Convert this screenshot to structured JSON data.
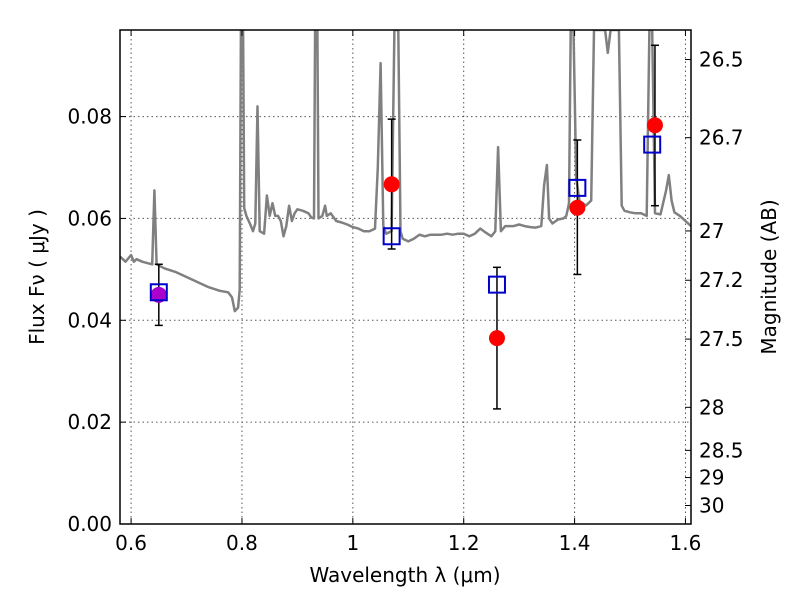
{
  "chart_data": {
    "type": "scatter",
    "xlabel": "Wavelength  λ (μm)",
    "ylabel": "Flux  Fν  ( μJy )",
    "ylabel_right": "Magnitude (AB)",
    "xlim": [
      0.58,
      1.61
    ],
    "ylim": [
      0.0,
      0.097
    ],
    "x_ticks": [
      0.6,
      0.8,
      1.0,
      1.2,
      1.4,
      1.6
    ],
    "x_tick_labels": [
      "0.6",
      "0.8",
      "1",
      "1.2",
      "1.4",
      "1.6"
    ],
    "y_ticks": [
      0.0,
      0.02,
      0.04,
      0.06,
      0.08
    ],
    "y_tick_labels": [
      "0.00",
      "0.02",
      "0.04",
      "0.06",
      "0.08"
    ],
    "right_ticks": [
      {
        "label": "26.5",
        "mag": 26.5
      },
      {
        "label": "26.7",
        "mag": 26.7
      },
      {
        "label": "27",
        "mag": 27.0
      },
      {
        "label": "27.2",
        "mag": 27.2
      },
      {
        "label": "27.5",
        "mag": 27.5
      },
      {
        "label": "28",
        "mag": 28.0
      },
      {
        "label": "28.5",
        "mag": 28.5
      },
      {
        "label": "29",
        "mag": 29.0
      },
      {
        "label": "30",
        "mag": 30.0
      }
    ],
    "grid": true,
    "colors": {
      "spectrum": "#808080",
      "observed": "#ff0000",
      "model": "#0000cc",
      "overlap": "#aa00cc",
      "errorbar": "#000000"
    },
    "series": [
      {
        "kind": "line",
        "points": [
          [
            0.58,
            0.0525
          ],
          [
            0.59,
            0.0515
          ],
          [
            0.6,
            0.0528
          ],
          [
            0.605,
            0.0515
          ],
          [
            0.61,
            0.052
          ],
          [
            0.62,
            0.0515
          ],
          [
            0.63,
            0.0512
          ],
          [
            0.638,
            0.051
          ],
          [
            0.642,
            0.0655
          ],
          [
            0.646,
            0.051
          ],
          [
            0.66,
            0.0502
          ],
          [
            0.68,
            0.0495
          ],
          [
            0.7,
            0.0485
          ],
          [
            0.72,
            0.0475
          ],
          [
            0.74,
            0.0465
          ],
          [
            0.76,
            0.0458
          ],
          [
            0.775,
            0.0455
          ],
          [
            0.782,
            0.0445
          ],
          [
            0.787,
            0.0418
          ],
          [
            0.793,
            0.0425
          ],
          [
            0.796,
            0.046
          ],
          [
            0.798,
            0.097
          ],
          [
            0.802,
            0.097
          ],
          [
            0.804,
            0.062
          ],
          [
            0.808,
            0.0605
          ],
          [
            0.815,
            0.0588
          ],
          [
            0.82,
            0.0575
          ],
          [
            0.824,
            0.059
          ],
          [
            0.828,
            0.082
          ],
          [
            0.832,
            0.0575
          ],
          [
            0.84,
            0.057
          ],
          [
            0.845,
            0.0645
          ],
          [
            0.85,
            0.0605
          ],
          [
            0.855,
            0.063
          ],
          [
            0.86,
            0.0605
          ],
          [
            0.865,
            0.0605
          ],
          [
            0.87,
            0.0595
          ],
          [
            0.875,
            0.0565
          ],
          [
            0.88,
            0.0585
          ],
          [
            0.885,
            0.0625
          ],
          [
            0.89,
            0.0595
          ],
          [
            0.895,
            0.061
          ],
          [
            0.9,
            0.0618
          ],
          [
            0.91,
            0.0615
          ],
          [
            0.92,
            0.061
          ],
          [
            0.925,
            0.0602
          ],
          [
            0.93,
            0.06
          ],
          [
            0.932,
            0.097
          ],
          [
            0.936,
            0.097
          ],
          [
            0.938,
            0.06
          ],
          [
            0.945,
            0.0605
          ],
          [
            0.95,
            0.0625
          ],
          [
            0.953,
            0.0605
          ],
          [
            0.96,
            0.061
          ],
          [
            0.97,
            0.0595
          ],
          [
            0.98,
            0.0592
          ],
          [
            0.99,
            0.0588
          ],
          [
            1.0,
            0.0583
          ],
          [
            1.01,
            0.058
          ],
          [
            1.02,
            0.0575
          ],
          [
            1.03,
            0.0575
          ],
          [
            1.04,
            0.058
          ],
          [
            1.045,
            0.07
          ],
          [
            1.05,
            0.0905
          ],
          [
            1.055,
            0.0585
          ],
          [
            1.06,
            0.057
          ],
          [
            1.07,
            0.0575
          ],
          [
            1.075,
            0.097
          ],
          [
            1.082,
            0.097
          ],
          [
            1.086,
            0.0575
          ],
          [
            1.09,
            0.056
          ],
          [
            1.1,
            0.0555
          ],
          [
            1.11,
            0.056
          ],
          [
            1.12,
            0.0568
          ],
          [
            1.13,
            0.0565
          ],
          [
            1.14,
            0.0568
          ],
          [
            1.15,
            0.0568
          ],
          [
            1.16,
            0.0568
          ],
          [
            1.17,
            0.057
          ],
          [
            1.18,
            0.0568
          ],
          [
            1.19,
            0.057
          ],
          [
            1.2,
            0.057
          ],
          [
            1.21,
            0.0565
          ],
          [
            1.22,
            0.057
          ],
          [
            1.23,
            0.058
          ],
          [
            1.24,
            0.0572
          ],
          [
            1.25,
            0.0565
          ],
          [
            1.257,
            0.0575
          ],
          [
            1.262,
            0.074
          ],
          [
            1.267,
            0.0575
          ],
          [
            1.275,
            0.0585
          ],
          [
            1.29,
            0.0585
          ],
          [
            1.3,
            0.0588
          ],
          [
            1.31,
            0.0585
          ],
          [
            1.32,
            0.0583
          ],
          [
            1.33,
            0.0582
          ],
          [
            1.34,
            0.0585
          ],
          [
            1.345,
            0.0665
          ],
          [
            1.35,
            0.0705
          ],
          [
            1.354,
            0.06
          ],
          [
            1.36,
            0.059
          ],
          [
            1.37,
            0.0598
          ],
          [
            1.38,
            0.06
          ],
          [
            1.385,
            0.0605
          ],
          [
            1.39,
            0.063
          ],
          [
            1.393,
            0.097
          ],
          [
            1.398,
            0.097
          ],
          [
            1.403,
            0.068
          ],
          [
            1.41,
            0.0625
          ],
          [
            1.415,
            0.063
          ],
          [
            1.42,
            0.0625
          ],
          [
            1.43,
            0.0635
          ],
          [
            1.435,
            0.097
          ],
          [
            1.455,
            0.097
          ],
          [
            1.46,
            0.0925
          ],
          [
            1.465,
            0.097
          ],
          [
            1.48,
            0.097
          ],
          [
            1.485,
            0.0625
          ],
          [
            1.49,
            0.0615
          ],
          [
            1.5,
            0.0612
          ],
          [
            1.51,
            0.061
          ],
          [
            1.52,
            0.061
          ],
          [
            1.53,
            0.0605
          ],
          [
            1.535,
            0.097
          ],
          [
            1.54,
            0.097
          ],
          [
            1.545,
            0.061
          ],
          [
            1.555,
            0.0608
          ],
          [
            1.565,
            0.0655
          ],
          [
            1.57,
            0.0685
          ],
          [
            1.575,
            0.0635
          ],
          [
            1.58,
            0.0612
          ],
          [
            1.59,
            0.0605
          ],
          [
            1.6,
            0.0595
          ],
          [
            1.61,
            0.0585
          ]
        ]
      },
      {
        "kind": "errorbar",
        "marker": "circle",
        "points": [
          {
            "x": 0.65,
            "y": 0.045,
            "ylo": 0.039,
            "yhi": 0.051
          },
          {
            "x": 1.07,
            "y": 0.0667,
            "ylo": 0.054,
            "yhi": 0.0795
          },
          {
            "x": 1.26,
            "y": 0.0365,
            "ylo": 0.0226,
            "yhi": 0.0504
          },
          {
            "x": 1.405,
            "y": 0.0621,
            "ylo": 0.049,
            "yhi": 0.0754
          },
          {
            "x": 1.545,
            "y": 0.0783,
            "ylo": 0.0625,
            "yhi": 0.094
          }
        ]
      },
      {
        "kind": "scatter",
        "marker": "open-square",
        "points": [
          {
            "x": 0.65,
            "y": 0.0455
          },
          {
            "x": 1.07,
            "y": 0.0565
          },
          {
            "x": 1.26,
            "y": 0.047
          },
          {
            "x": 1.405,
            "y": 0.066
          },
          {
            "x": 1.54,
            "y": 0.0745
          }
        ]
      }
    ]
  }
}
